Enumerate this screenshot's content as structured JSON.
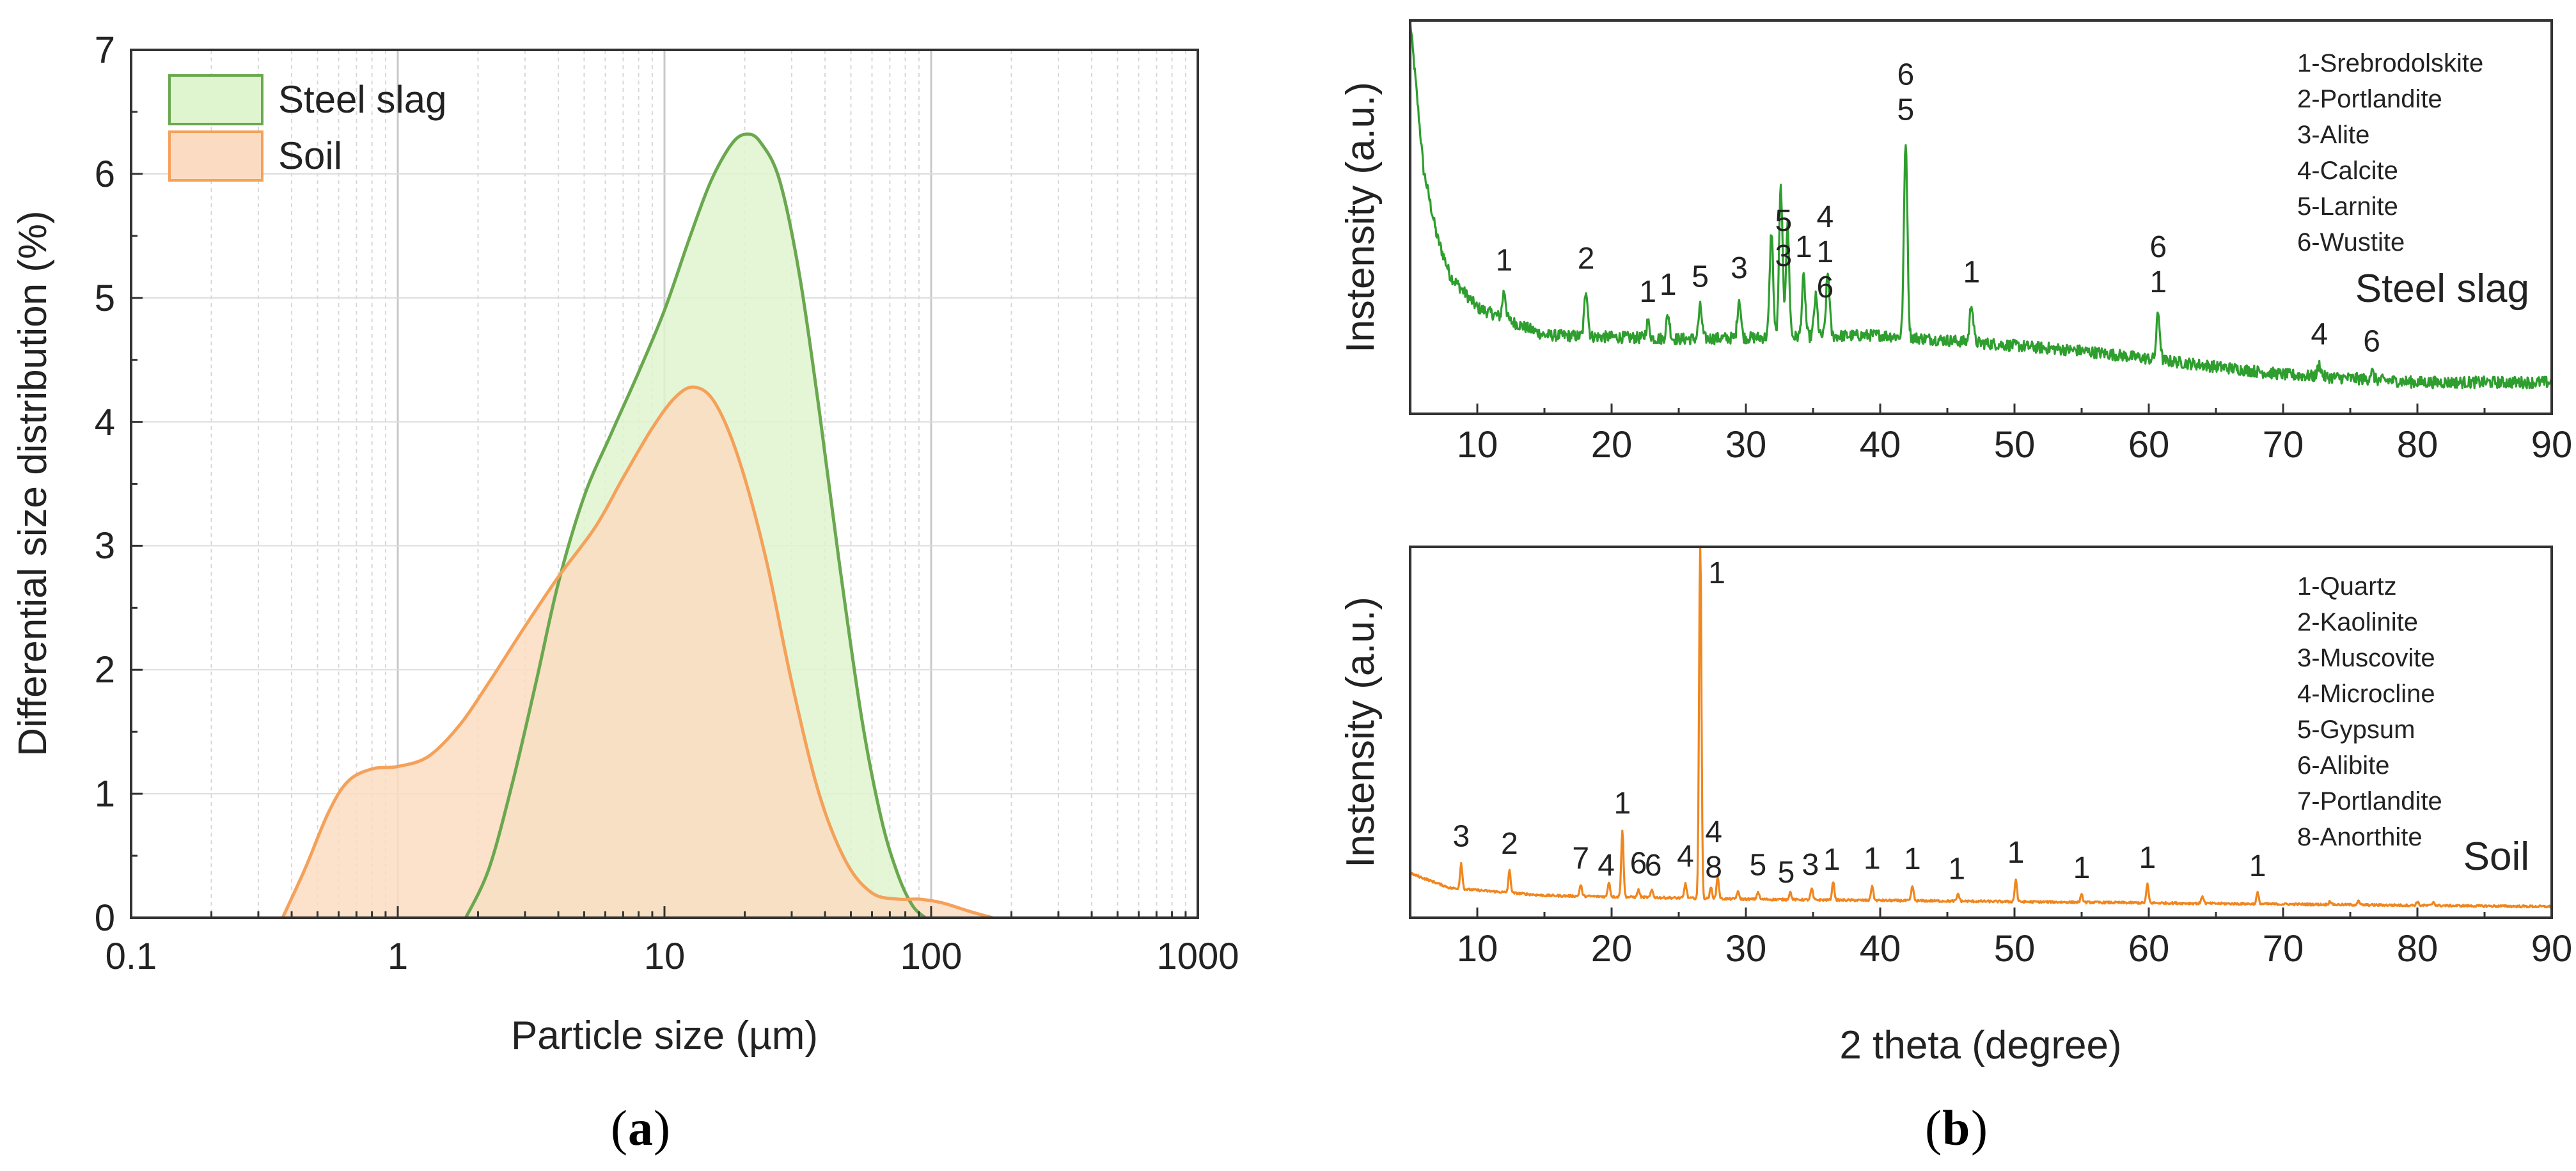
{
  "chart_data": [
    {
      "type": "area",
      "panel_caption": "a",
      "xscale": "log",
      "xlim": [
        0.1,
        1000
      ],
      "ylim": [
        0,
        7
      ],
      "xlabel": "Particle size (µm)",
      "ylabel": "Differential size distribution (%)",
      "xticks": [
        "0.1",
        "1",
        "10",
        "100",
        "1000"
      ],
      "yticks": [
        "0",
        "1",
        "2",
        "3",
        "4",
        "5",
        "6",
        "7"
      ],
      "grid": true,
      "legend_position": "top-left",
      "series": [
        {
          "name": "Steel slag",
          "color": "#6aa84f",
          "fill": "#dff5cf",
          "x": [
            1.8,
            2.2,
            2.7,
            3.3,
            4,
            5,
            6.3,
            8,
            10,
            12.5,
            15,
            18,
            20.5,
            23,
            27,
            32,
            38,
            45,
            55,
            65,
            75,
            85,
            95
          ],
          "y": [
            0,
            0.4,
            1.1,
            1.9,
            2.7,
            3.4,
            3.9,
            4.4,
            4.9,
            5.5,
            5.95,
            6.25,
            6.32,
            6.25,
            5.95,
            5.2,
            4.1,
            2.9,
            1.6,
            0.8,
            0.35,
            0.1,
            0
          ]
        },
        {
          "name": "Soil",
          "color": "#f4a15a",
          "fill": "#fbdcc2",
          "x": [
            0.37,
            0.45,
            0.55,
            0.65,
            0.8,
            1,
            1.3,
            1.7,
            2.2,
            3,
            4,
            5.5,
            7,
            9,
            11,
            13,
            15.5,
            19,
            24,
            30,
            38,
            48,
            60,
            75,
            90,
            110,
            140,
            170
          ],
          "y": [
            0,
            0.4,
            0.85,
            1.1,
            1.2,
            1.22,
            1.3,
            1.55,
            1.9,
            2.35,
            2.75,
            3.15,
            3.55,
            3.95,
            4.2,
            4.28,
            4.15,
            3.7,
            2.9,
            1.9,
            1.0,
            0.45,
            0.2,
            0.15,
            0.15,
            0.12,
            0.05,
            0
          ]
        }
      ]
    },
    {
      "type": "line",
      "panel_caption": "b",
      "xlim": [
        5,
        90
      ],
      "xlabel": "2 theta (degree)",
      "xticks": [
        "10",
        "20",
        "30",
        "40",
        "50",
        "60",
        "70",
        "80",
        "90"
      ],
      "subplots": [
        {
          "name": "Steel slag",
          "ylabel": "Instensity (a.u.)",
          "color": "#2e9e2e",
          "legend_notes": [
            "1-Srebrodolskite",
            "2-Portlandite",
            "3-Alite",
            "4-Calcite",
            "5-Larnite",
            "6-Wustite"
          ],
          "baseline": [
            [
              5,
              1.0
            ],
            [
              6,
              0.62
            ],
            [
              7,
              0.45
            ],
            [
              8,
              0.35
            ],
            [
              10,
              0.27
            ],
            [
              15,
              0.2
            ],
            [
              25,
              0.19
            ],
            [
              40,
              0.2
            ],
            [
              55,
              0.16
            ],
            [
              70,
              0.1
            ],
            [
              80,
              0.08
            ],
            [
              90,
              0.08
            ]
          ],
          "peaks": [
            [
              12,
              0.07
            ],
            [
              18.1,
              0.12
            ],
            [
              22.7,
              0.04
            ],
            [
              24.2,
              0.06
            ],
            [
              26.6,
              0.08
            ],
            [
              29.5,
              0.1
            ],
            [
              31.9,
              0.27
            ],
            [
              32.6,
              0.38
            ],
            [
              33.1,
              0.28
            ],
            [
              34.3,
              0.15
            ],
            [
              35.2,
              0.1
            ],
            [
              36.1,
              0.16
            ],
            [
              41.9,
              0.5
            ],
            [
              46.8,
              0.1
            ],
            [
              60.7,
              0.12
            ],
            [
              72.7,
              0.03
            ],
            [
              76.6,
              0.02
            ]
          ],
          "peak_labels": [
            {
              "x": 12,
              "lines": [
                "1"
              ]
            },
            {
              "x": 18.1,
              "lines": [
                "2"
              ]
            },
            {
              "x": 22.7,
              "lines": [
                "1"
              ]
            },
            {
              "x": 24.2,
              "lines": [
                "1"
              ]
            },
            {
              "x": 26.6,
              "lines": [
                "5"
              ]
            },
            {
              "x": 29.5,
              "lines": [
                "3"
              ]
            },
            {
              "x": 32.8,
              "lines": [
                "5",
                "3"
              ]
            },
            {
              "x": 34.3,
              "lines": [
                "1"
              ]
            },
            {
              "x": 35.9,
              "lines": [
                "4",
                "1",
                "6"
              ]
            },
            {
              "x": 41.9,
              "lines": [
                "6",
                "5"
              ]
            },
            {
              "x": 46.8,
              "lines": [
                "1"
              ]
            },
            {
              "x": 60.7,
              "lines": [
                "6",
                "1"
              ]
            },
            {
              "x": 72.7,
              "lines": [
                "4"
              ]
            },
            {
              "x": 76.6,
              "lines": [
                "6"
              ]
            }
          ]
        },
        {
          "name": "Soil",
          "ylabel": "Instensity (a.u.)",
          "color": "#f0861e",
          "legend_notes": [
            "1-Quartz",
            "2-Kaolinite",
            "3-Muscovite",
            "4-Microcline",
            "5-Gypsum",
            "6-Alibite",
            "7-Portlandite",
            "8-Anorthite"
          ],
          "baseline": [
            [
              5,
              0.12
            ],
            [
              8,
              0.08
            ],
            [
              15,
              0.06
            ],
            [
              30,
              0.05
            ],
            [
              60,
              0.04
            ],
            [
              90,
              0.03
            ]
          ],
          "peaks": [
            [
              8.8,
              0.07
            ],
            [
              12.4,
              0.06
            ],
            [
              17.7,
              0.03
            ],
            [
              19.8,
              0.04
            ],
            [
              20.8,
              0.18
            ],
            [
              22,
              0.02
            ],
            [
              23,
              0.02
            ],
            [
              25.5,
              0.04
            ],
            [
              26.6,
              1.0
            ],
            [
              27.4,
              0.03
            ],
            [
              27.9,
              0.06
            ],
            [
              29.4,
              0.02
            ],
            [
              30.9,
              0.02
            ],
            [
              33.3,
              0.02
            ],
            [
              34.9,
              0.03
            ],
            [
              36.5,
              0.05
            ],
            [
              39.4,
              0.04
            ],
            [
              42.4,
              0.04
            ],
            [
              45.8,
              0.02
            ],
            [
              50.1,
              0.06
            ],
            [
              55,
              0.02
            ],
            [
              59.9,
              0.05
            ],
            [
              64,
              0.02
            ],
            [
              68.1,
              0.03
            ],
            [
              73.5,
              0.01
            ],
            [
              75.6,
              0.01
            ],
            [
              80,
              0.01
            ],
            [
              81.2,
              0.01
            ]
          ],
          "peak_labels": [
            {
              "x": 8.8,
              "lines": [
                "3"
              ]
            },
            {
              "x": 12.4,
              "lines": [
                "2"
              ]
            },
            {
              "x": 17.7,
              "lines": [
                "7"
              ]
            },
            {
              "x": 19.6,
              "lines": [
                "4"
              ]
            },
            {
              "x": 20.8,
              "lines": [
                "1"
              ]
            },
            {
              "x": 22,
              "lines": [
                "6"
              ]
            },
            {
              "x": 23.1,
              "lines": [
                "6"
              ]
            },
            {
              "x": 25.5,
              "lines": [
                "4"
              ]
            },
            {
              "x": 27.6,
              "lines": [
                "4",
                "8"
              ]
            },
            {
              "x": 30.9,
              "lines": [
                "5"
              ]
            },
            {
              "x": 33,
              "lines": [
                "5"
              ]
            },
            {
              "x": 34.8,
              "lines": [
                "3"
              ]
            },
            {
              "x": 36.4,
              "lines": [
                "1"
              ]
            },
            {
              "x": 39.4,
              "lines": [
                "1"
              ]
            },
            {
              "x": 42.4,
              "lines": [
                "1"
              ]
            },
            {
              "x": 45.7,
              "lines": [
                "1"
              ]
            },
            {
              "x": 50.1,
              "lines": [
                "1"
              ]
            },
            {
              "x": 55,
              "lines": [
                "1"
              ]
            },
            {
              "x": 59.9,
              "lines": [
                "1"
              ]
            },
            {
              "x": 68.1,
              "lines": [
                "1"
              ]
            }
          ],
          "top_label": {
            "x": 26.6,
            "text": "1"
          }
        }
      ]
    }
  ]
}
